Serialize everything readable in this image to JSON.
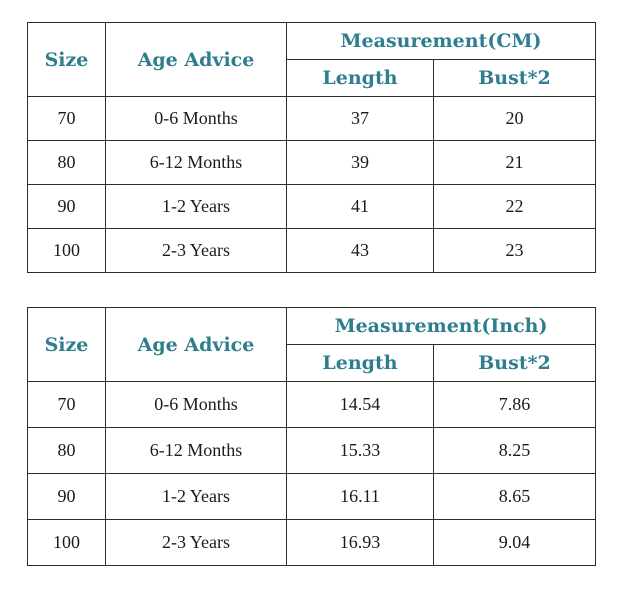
{
  "colors": {
    "header_text": "#2e7e8e",
    "data_text": "#1b1b1b",
    "border": "#2d2d2d",
    "background": "#ffffff"
  },
  "tables": [
    {
      "name": "cm",
      "header": {
        "size": "Size",
        "age_advice": "Age Advice",
        "measurement": "Measurement(CM)",
        "length": "Length",
        "bust": "Bust*2"
      },
      "rows": [
        {
          "size": "70",
          "age": "0-6 Months",
          "length": "37",
          "bust": "20"
        },
        {
          "size": "80",
          "age": "6-12 Months",
          "length": "39",
          "bust": "21"
        },
        {
          "size": "90",
          "age": "1-2 Years",
          "length": "41",
          "bust": "22"
        },
        {
          "size": "100",
          "age": "2-3 Years",
          "length": "43",
          "bust": "23"
        }
      ]
    },
    {
      "name": "inch",
      "header": {
        "size": "Size",
        "age_advice": "Age Advice",
        "measurement": "Measurement(Inch)",
        "length": "Length",
        "bust": "Bust*2"
      },
      "rows": [
        {
          "size": "70",
          "age": "0-6 Months",
          "length": "14.54",
          "bust": "7.86"
        },
        {
          "size": "80",
          "age": "6-12 Months",
          "length": "15.33",
          "bust": "8.25"
        },
        {
          "size": "90",
          "age": "1-2 Years",
          "length": "16.11",
          "bust": "8.65"
        },
        {
          "size": "100",
          "age": "2-3 Years",
          "length": "16.93",
          "bust": "9.04"
        }
      ]
    }
  ],
  "chart_data": [
    {
      "type": "table",
      "title": "Measurement(CM)",
      "columns": [
        "Size",
        "Age Advice",
        "Length",
        "Bust*2"
      ],
      "rows": [
        [
          "70",
          "0-6 Months",
          37,
          20
        ],
        [
          "80",
          "6-12 Months",
          39,
          21
        ],
        [
          "90",
          "1-2 Years",
          41,
          22
        ],
        [
          "100",
          "2-3 Years",
          43,
          23
        ]
      ]
    },
    {
      "type": "table",
      "title": "Measurement(Inch)",
      "columns": [
        "Size",
        "Age Advice",
        "Length",
        "Bust*2"
      ],
      "rows": [
        [
          "70",
          "0-6 Months",
          14.54,
          7.86
        ],
        [
          "80",
          "6-12 Months",
          15.33,
          8.25
        ],
        [
          "90",
          "1-2 Years",
          16.11,
          8.65
        ],
        [
          "100",
          "2-3 Years",
          16.93,
          9.04
        ]
      ]
    }
  ]
}
